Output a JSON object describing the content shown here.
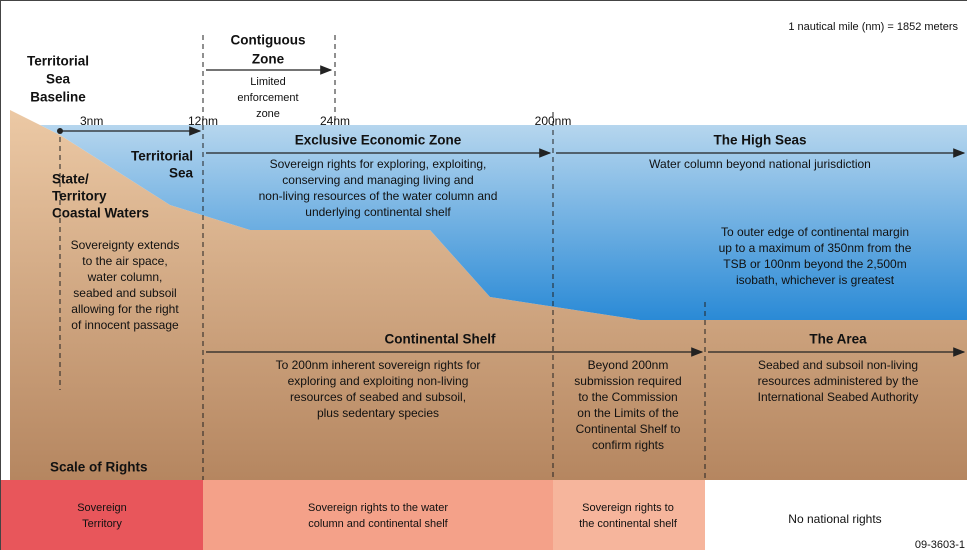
{
  "note": "1 nautical mile (nm) = 1852 meters",
  "baseline": {
    "label": [
      "Territorial",
      "Sea",
      "Baseline"
    ]
  },
  "markers": [
    "3nm",
    "12nm",
    "24nm",
    "200nm"
  ],
  "contiguous_zone": {
    "title": [
      "Contiguous",
      "Zone"
    ],
    "description": [
      "Limited",
      "enforcement",
      "zone"
    ]
  },
  "exclusive_economic_zone": {
    "title": "Exclusive Economic Zone",
    "description": [
      "Sovereign rights for exploring, exploiting,",
      "conserving and managing living and",
      "non-living resources of the water column and",
      "underlying continental shelf"
    ]
  },
  "high_seas": {
    "title": "The High Seas",
    "description": [
      "Water column beyond national jurisdiction"
    ]
  },
  "territorial_sea": {
    "title": [
      "Territorial",
      "Sea"
    ]
  },
  "coastal_waters": {
    "title": [
      "State/",
      "Territory",
      "Coastal Waters"
    ],
    "description": [
      "Sovereignty extends",
      "to the air space,",
      "water column,",
      "seabed and subsoil",
      "allowing for the right",
      "of innocent passage"
    ]
  },
  "outer_edge": {
    "description": [
      "To outer edge of continental margin",
      "up to a maximum of 350nm from the",
      "TSB or 100nm beyond the 2,500m",
      "isobath, whichever is greatest"
    ]
  },
  "continental_shelf": {
    "title": "Continental Shelf",
    "description": [
      "To 200nm inherent sovereign rights for",
      "exploring and exploiting non-living",
      "resources of seabed and subsoil,",
      "plus sedentary species"
    ]
  },
  "beyond_200nm": {
    "description": [
      "Beyond 200nm",
      "submission required",
      "to the Commission",
      "on the Limits of the",
      "Continental Shelf to",
      "confirm rights"
    ]
  },
  "the_area": {
    "title": "The Area",
    "description": [
      "Seabed and subsoil non-living",
      "resources administered by the",
      "International Seabed Authority"
    ]
  },
  "scale_of_rights": {
    "title": "Scale of Rights",
    "bands": [
      [
        "Sovereign",
        "Territory"
      ],
      [
        "Sovereign rights to the water",
        "column and continental shelf"
      ],
      [
        "Sovereign rights to",
        "the continental shelf"
      ],
      [
        "No national rights"
      ]
    ]
  },
  "figure_id": "09-3603-1"
}
